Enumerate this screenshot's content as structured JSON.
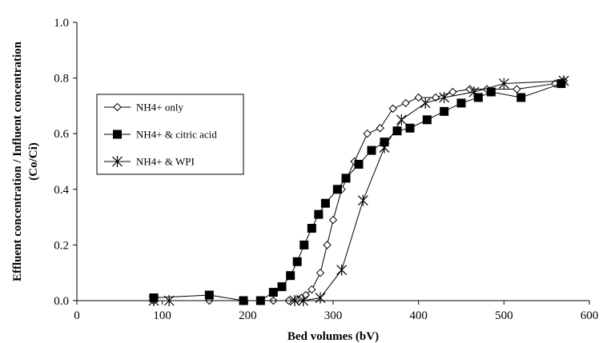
{
  "chart_data": {
    "type": "line",
    "title": "",
    "xlabel": "Bed volumes (bV)",
    "ylabel_lines": [
      "Effluent concentration / Influent concentration",
      "(Co/Ci)"
    ],
    "xlim": [
      0,
      600
    ],
    "ylim": [
      0.0,
      1.0
    ],
    "xticks": [
      0,
      100,
      200,
      300,
      400,
      500,
      600
    ],
    "xtick_labels": [
      "0",
      "100",
      "200",
      "300",
      "400",
      "500",
      "600"
    ],
    "yticks": [
      0.0,
      0.2,
      0.4,
      0.6,
      0.8,
      1.0
    ],
    "ytick_labels": [
      "0.0",
      "0.2",
      "0.4",
      "0.6",
      "0.8",
      "1.0"
    ],
    "grid": false,
    "legend_position": "left-middle",
    "series": [
      {
        "name": "NH4+ only",
        "marker": "open-diamond",
        "points": [
          [
            90,
            0.0
          ],
          [
            155,
            0.0
          ],
          [
            195,
            0.0
          ],
          [
            215,
            0.0
          ],
          [
            230,
            0.0
          ],
          [
            248,
            0.0
          ],
          [
            258,
            0.005
          ],
          [
            263,
            0.01
          ],
          [
            268,
            0.02
          ],
          [
            275,
            0.04
          ],
          [
            285,
            0.1
          ],
          [
            293,
            0.2
          ],
          [
            300,
            0.29
          ],
          [
            310,
            0.4
          ],
          [
            325,
            0.5
          ],
          [
            340,
            0.6
          ],
          [
            355,
            0.62
          ],
          [
            370,
            0.69
          ],
          [
            385,
            0.71
          ],
          [
            400,
            0.73
          ],
          [
            420,
            0.73
          ],
          [
            440,
            0.75
          ],
          [
            460,
            0.76
          ],
          [
            480,
            0.76
          ],
          [
            515,
            0.76
          ],
          [
            560,
            0.78
          ],
          [
            570,
            0.79
          ]
        ]
      },
      {
        "name": "NH4+ & citric acid",
        "marker": "filled-square",
        "points": [
          [
            90,
            0.01
          ],
          [
            155,
            0.02
          ],
          [
            195,
            0.0
          ],
          [
            215,
            0.0
          ],
          [
            230,
            0.03
          ],
          [
            240,
            0.05
          ],
          [
            250,
            0.09
          ],
          [
            258,
            0.14
          ],
          [
            266,
            0.2
          ],
          [
            275,
            0.26
          ],
          [
            283,
            0.31
          ],
          [
            291,
            0.35
          ],
          [
            305,
            0.4
          ],
          [
            315,
            0.44
          ],
          [
            330,
            0.49
          ],
          [
            345,
            0.54
          ],
          [
            360,
            0.57
          ],
          [
            375,
            0.61
          ],
          [
            390,
            0.62
          ],
          [
            410,
            0.65
          ],
          [
            430,
            0.68
          ],
          [
            450,
            0.71
          ],
          [
            470,
            0.73
          ],
          [
            485,
            0.75
          ],
          [
            520,
            0.73
          ],
          [
            567,
            0.78
          ]
        ]
      },
      {
        "name": "NH4+ & WPI",
        "marker": "asterisk",
        "points": [
          [
            90,
            0.0
          ],
          [
            108,
            0.0
          ],
          [
            255,
            0.0
          ],
          [
            265,
            0.0
          ],
          [
            285,
            0.01
          ],
          [
            310,
            0.11
          ],
          [
            335,
            0.36
          ],
          [
            360,
            0.55
          ],
          [
            380,
            0.65
          ],
          [
            408,
            0.71
          ],
          [
            430,
            0.73
          ],
          [
            465,
            0.75
          ],
          [
            500,
            0.78
          ],
          [
            570,
            0.79
          ]
        ]
      }
    ]
  }
}
